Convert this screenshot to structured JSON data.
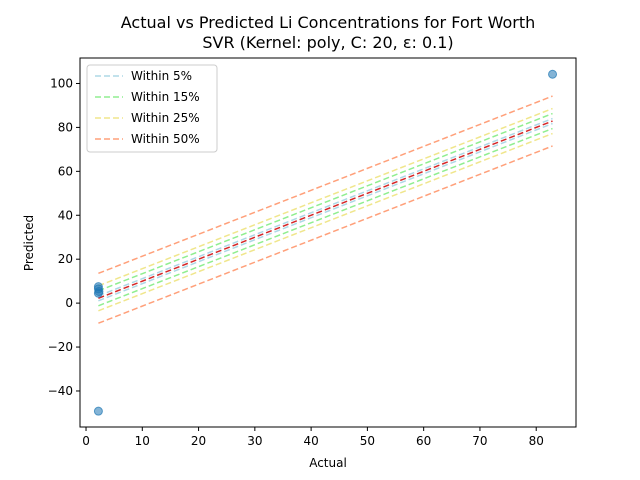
{
  "chart_data": {
    "type": "scatter",
    "title_line1": "Actual vs Predicted Li Concentrations for Fort Worth",
    "title_line2": "SVR (Kernel: poly, C: 20, ε: 0.1)",
    "xlabel": "Actual",
    "ylabel": "Predicted",
    "xlim": [
      -1.07,
      87.07
    ],
    "ylim": [
      -56.4,
      111.6
    ],
    "xticks": [
      0,
      10,
      20,
      30,
      40,
      50,
      60,
      70,
      80
    ],
    "yticks": [
      -40,
      -20,
      0,
      20,
      40,
      60,
      80,
      100
    ],
    "grid": false,
    "legend_position": "top-left",
    "points": [
      {
        "x": 2.2,
        "y": 7.5
      },
      {
        "x": 2.2,
        "y": 6.5
      },
      {
        "x": 2.3,
        "y": 5.3
      },
      {
        "x": 2.2,
        "y": 4.5
      },
      {
        "x": 2.2,
        "y": -49.2
      },
      {
        "x": 82.9,
        "y": 104.2
      }
    ],
    "point_color": "#1f77b4",
    "identity_line": {
      "x": [
        2.2,
        82.9
      ],
      "color": "#d62728"
    },
    "bands": [
      {
        "name": "Within 5%",
        "percent": 5,
        "color": "#add8e6"
      },
      {
        "name": "Within 15%",
        "percent": 15,
        "color": "#90ee90"
      },
      {
        "name": "Within 25%",
        "percent": 25,
        "color": "#f0e68c"
      },
      {
        "name": "Within 50%",
        "percent": 50,
        "color": "#ffa07a"
      }
    ]
  }
}
